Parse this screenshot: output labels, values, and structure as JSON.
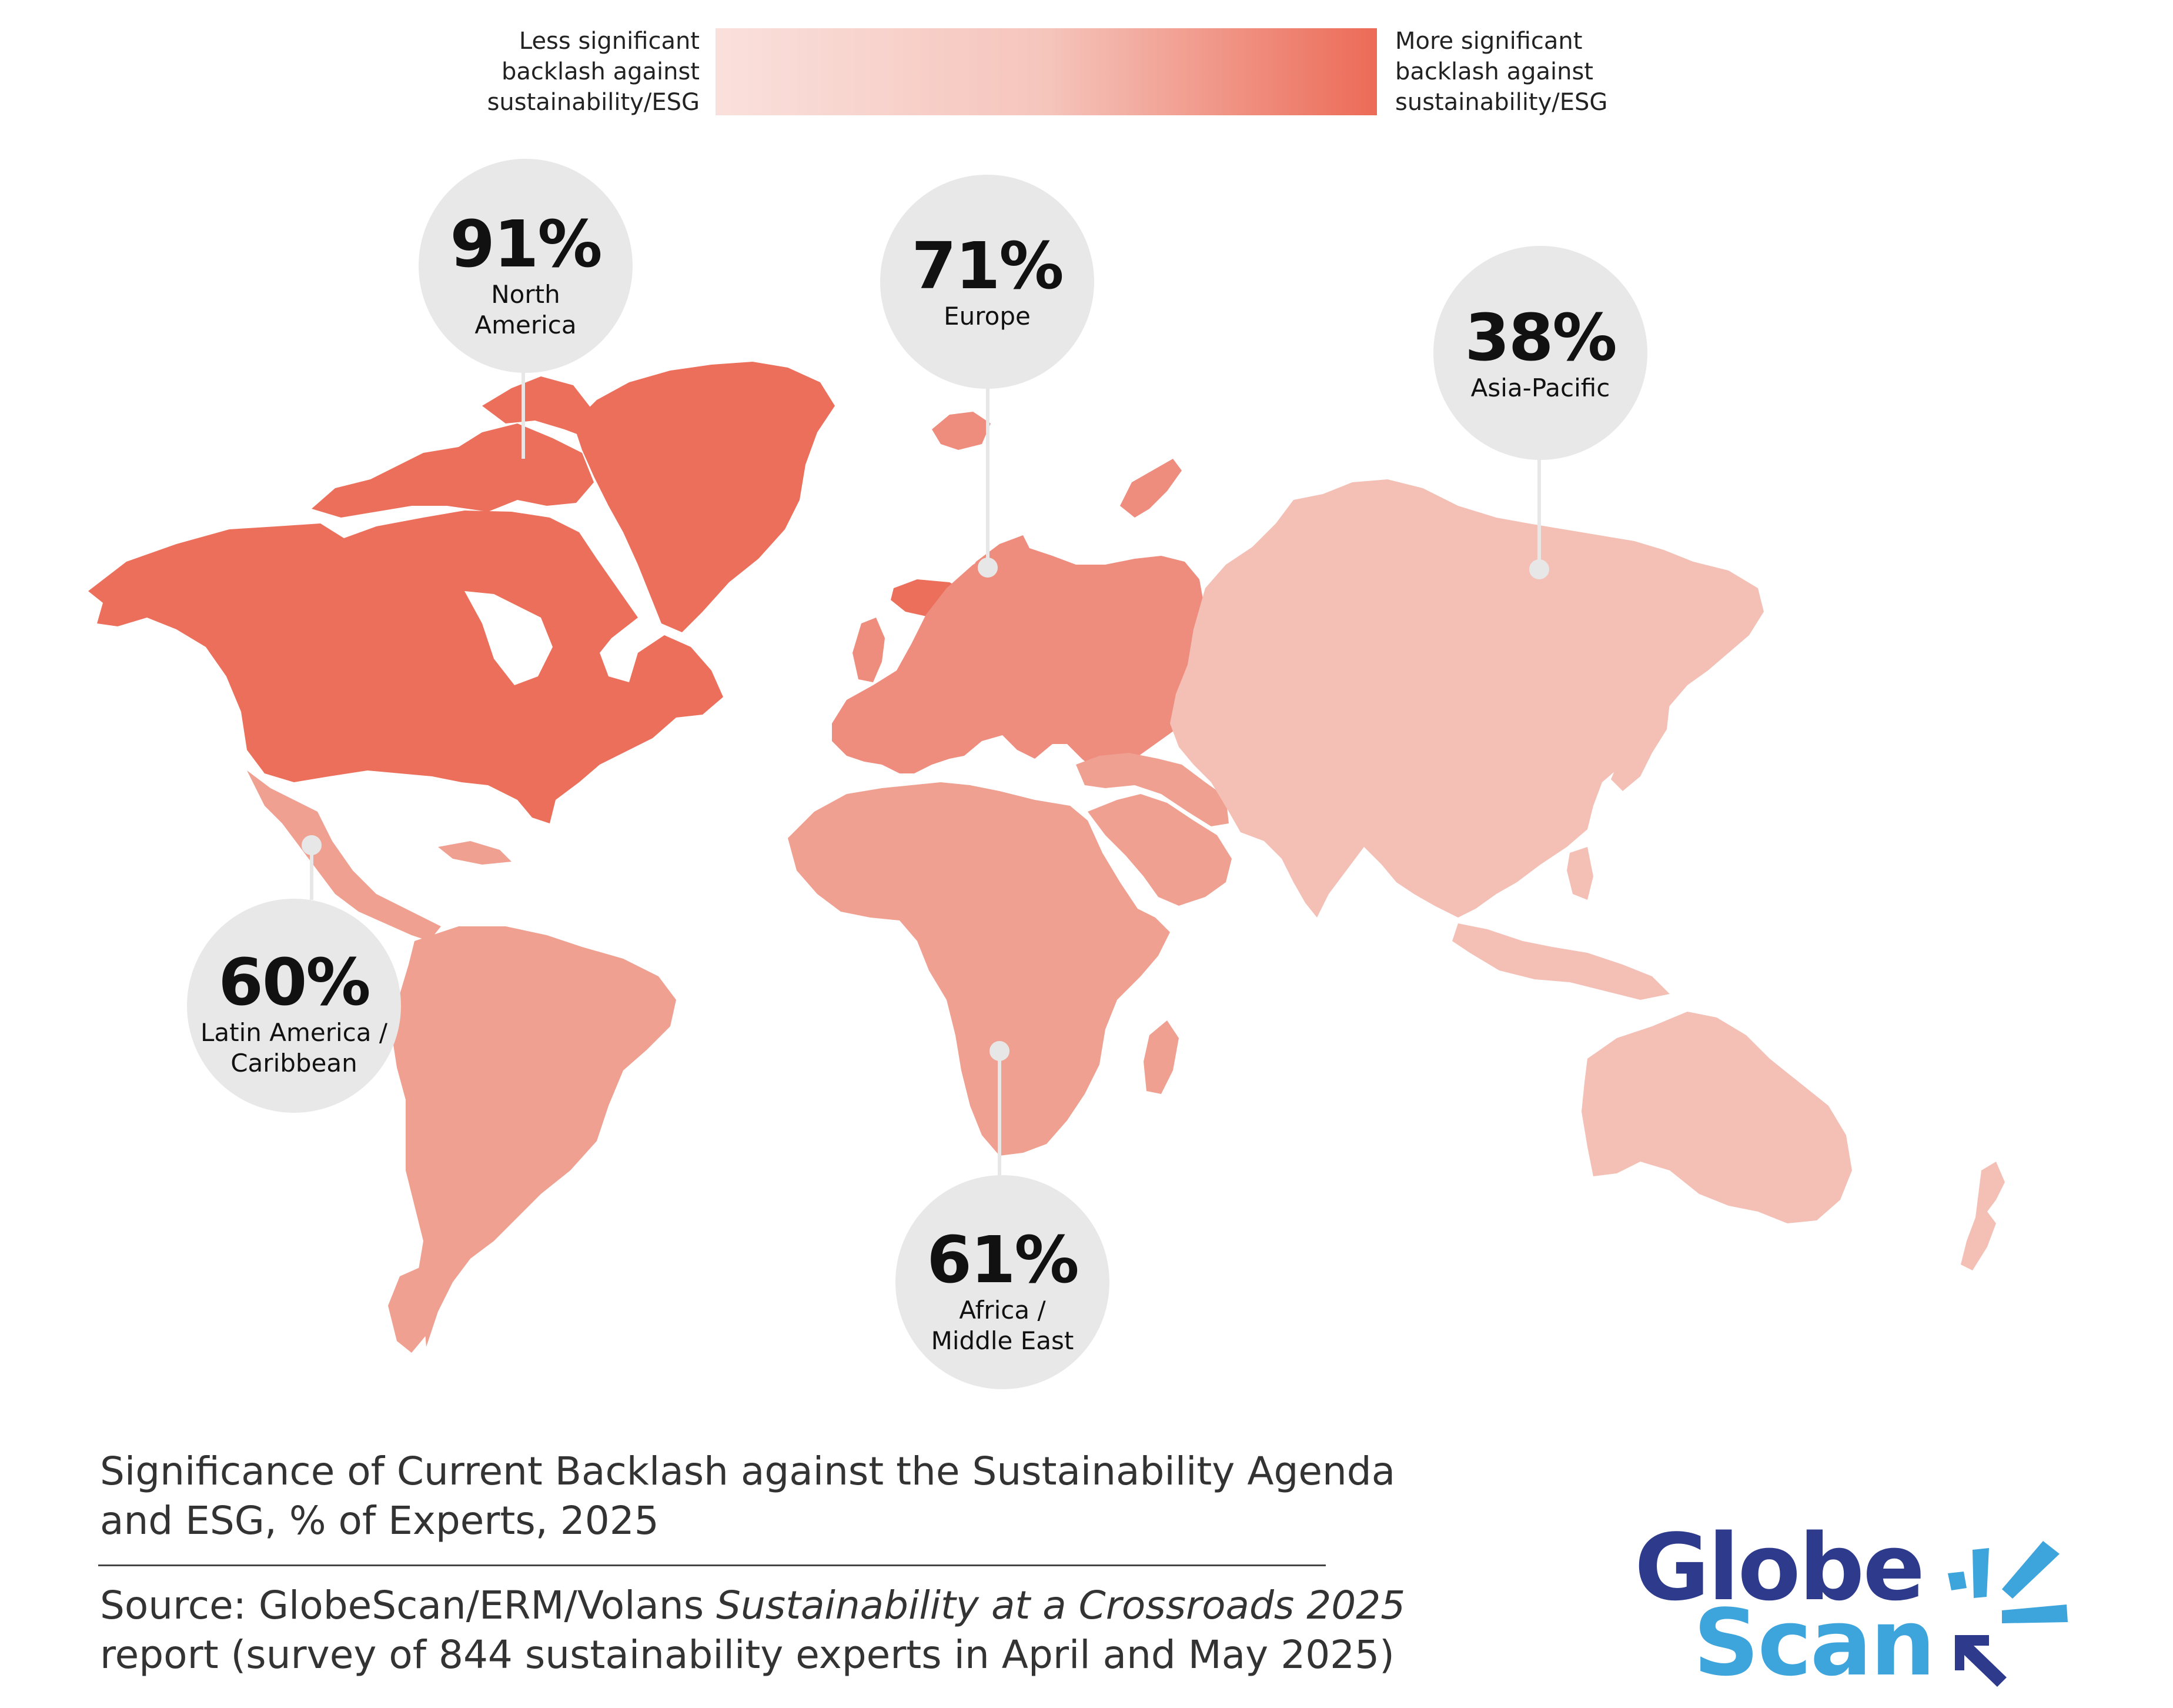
{
  "legend": {
    "low_label": [
      "Less significant",
      "backlash against",
      "sustainability/ESG"
    ],
    "high_label": [
      "More significant",
      "backlash against",
      "sustainability/ESG"
    ],
    "low_color": "#FAE0DC",
    "high_color": "#EC6B57"
  },
  "regions": [
    {
      "pct": "91%",
      "name": [
        "North",
        "America"
      ],
      "value": 91,
      "color": "#EC6F5C"
    },
    {
      "pct": "71%",
      "name": [
        "Europe"
      ],
      "value": 71,
      "color": "#EE8C7E"
    },
    {
      "pct": "38%",
      "name": [
        "Asia-Pacific"
      ],
      "value": 38,
      "color": "#F4C0B6"
    },
    {
      "pct": "60%",
      "name": [
        "Latin America /",
        "Caribbean"
      ],
      "value": 60,
      "color": "#EFA090"
    },
    {
      "pct": "61%",
      "name": [
        "Africa /",
        "Middle East"
      ],
      "value": 61,
      "color": "#EFA090"
    }
  ],
  "caption": {
    "line1": "Significance of Current Backlash against the Sustainability Agenda",
    "line2": "and ESG, % of Experts, 2025"
  },
  "source": {
    "lead": "Source: GlobeScan/ERM/Volans ",
    "title": "Sustainability at a Crossroads 2025",
    "line2": "report (survey of 844 sustainability experts in April and May 2025)"
  },
  "logo": {
    "word1": "Globe",
    "word2": "Scan",
    "word1_color": "#2E3A8C",
    "word2_color": "#3DA4DC",
    "icon": "starburst-arrow-icon"
  }
}
